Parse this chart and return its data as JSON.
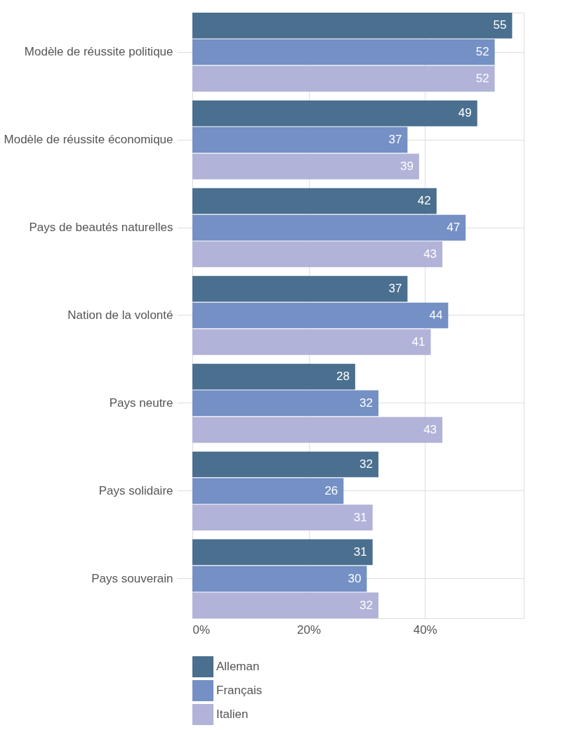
{
  "chart_data": {
    "type": "bar",
    "orientation": "horizontal",
    "categories": [
      "Modèle de réussite politique",
      "Modèle de réussite économique",
      "Pays de beautés naturelles",
      "Nation de la volonté",
      "Pays neutre",
      "Pays solidaire",
      "Pays souverain"
    ],
    "series": [
      {
        "name": "Alleman",
        "color": "#4a6f8f",
        "values": [
          55,
          49,
          42,
          37,
          28,
          32,
          31
        ]
      },
      {
        "name": "Français",
        "color": "#7490c4",
        "values": [
          52,
          37,
          47,
          44,
          32,
          26,
          30
        ]
      },
      {
        "name": "Italien",
        "color": "#b1b3d8",
        "values": [
          52,
          39,
          43,
          41,
          43,
          31,
          32
        ]
      }
    ],
    "xlim": [
      0,
      57
    ],
    "xticks": [
      {
        "value": 0,
        "label": "0%"
      },
      {
        "value": 20,
        "label": "20%"
      },
      {
        "value": 40,
        "label": "40%"
      }
    ],
    "grid": true,
    "legend": "bottom",
    "data_labels": true
  }
}
